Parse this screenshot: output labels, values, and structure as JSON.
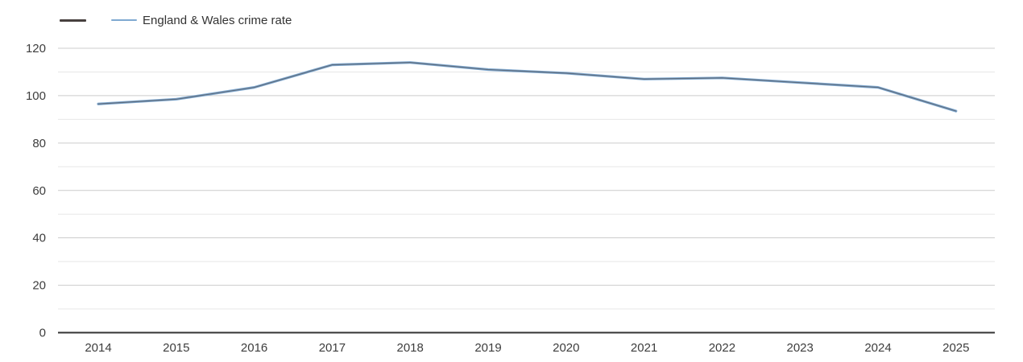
{
  "page": {
    "background": "#ffffff"
  },
  "legend": {
    "position": "top-left",
    "items": [
      {
        "label": "",
        "color": "#47403f"
      },
      {
        "label": "England & Wales crime rate",
        "color": "#7fa9d1"
      }
    ]
  },
  "chart_data": {
    "type": "line",
    "title": "",
    "xlabel": "",
    "ylabel": "",
    "x": [
      "2014",
      "2015",
      "2016",
      "2017",
      "2018",
      "2019",
      "2020",
      "2021",
      "2022",
      "2023",
      "2024",
      "2025"
    ],
    "series": [
      {
        "name": "",
        "color": "#47403f",
        "values": [
          96.5,
          98.5,
          103.5,
          113,
          114,
          111,
          109.5,
          107,
          107.5,
          105.5,
          103.5,
          93.5
        ]
      },
      {
        "name": "England & Wales crime rate",
        "color": "#7fa9d1",
        "values": [
          96.5,
          98.5,
          103.5,
          113,
          114,
          111,
          109.5,
          107,
          107.5,
          105.5,
          103.5,
          93.5
        ]
      }
    ],
    "ylim": [
      0,
      120
    ],
    "yticks": [
      0,
      20,
      40,
      60,
      80,
      100,
      120
    ],
    "minor_gridlines": [
      10,
      30,
      50,
      70,
      90,
      110
    ],
    "grid": true,
    "legend_position": "top-left",
    "colors": {
      "axis": "#333333",
      "major_grid": "#cccccc",
      "minor_grid": "#e7e7e7",
      "tick_label": "#3d3d3d"
    }
  }
}
